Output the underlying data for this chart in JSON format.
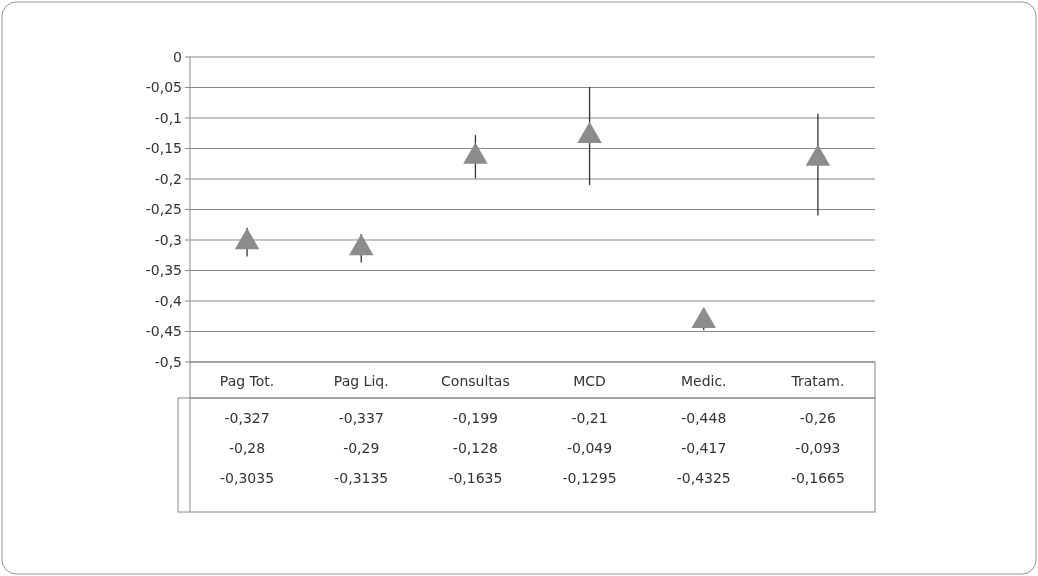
{
  "chart_data": {
    "type": "scatter",
    "categories": [
      "Pag Tot.",
      "Pag Liq.",
      "Consultas",
      "MCD",
      "Medic.",
      "Tratam."
    ],
    "values": [
      -0.3035,
      -0.3135,
      -0.1635,
      -0.1295,
      -0.4325,
      -0.1665
    ],
    "value_labels": [
      "-0,3035",
      "-0,3135",
      "-0,1635",
      "-0,1295",
      "-0,4325",
      "-0,1665"
    ],
    "errors": [
      [
        -0.327,
        -0.28
      ],
      [
        -0.337,
        -0.29
      ],
      [
        -0.199,
        -0.128
      ],
      [
        -0.21,
        -0.049
      ],
      [
        -0.448,
        -0.417
      ],
      [
        -0.26,
        -0.093
      ]
    ],
    "annotations": [
      "-0,327",
      "-0,337",
      "-0,199",
      "-0,21",
      "-0,448",
      "-0,26",
      "-0,28",
      "-0,29",
      "-0,128",
      "-0,049",
      "-0,417",
      "-0,093"
    ],
    "color": "#8c8c8c",
    "marker": "triangle",
    "grid": "y",
    "ylim": [
      -0.5,
      0
    ],
    "yticks": [
      {
        "value": 0,
        "label": "0"
      },
      {
        "value": -0.05,
        "label": "-0,05"
      },
      {
        "value": -0.1,
        "label": "-0,1"
      },
      {
        "value": -0.15,
        "label": "-0,15"
      },
      {
        "value": -0.2,
        "label": "-0,2"
      },
      {
        "value": -0.25,
        "label": "-0,25"
      },
      {
        "value": -0.3,
        "label": "-0,3"
      },
      {
        "value": -0.35,
        "label": "-0,35"
      },
      {
        "value": -0.4,
        "label": "-0,4"
      },
      {
        "value": -0.45,
        "label": "-0,45"
      },
      {
        "value": -0.5,
        "label": "-0,5"
      }
    ]
  }
}
